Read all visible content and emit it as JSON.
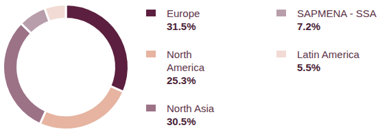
{
  "chart_data": {
    "type": "doughnut",
    "categories": [
      "Europe",
      "North America",
      "North Asia",
      "SAPMENA - SSA",
      "Latin America"
    ],
    "values": [
      31.5,
      25.3,
      30.5,
      7.2,
      5.5
    ],
    "value_labels": [
      "31.5%",
      "25.3%",
      "30.5%",
      "7.2%",
      "5.5%"
    ],
    "colors": [
      "#5c1f3f",
      "#e6b4a1",
      "#9c7287",
      "#b89dab",
      "#f1dbd4"
    ],
    "legend": "right"
  }
}
